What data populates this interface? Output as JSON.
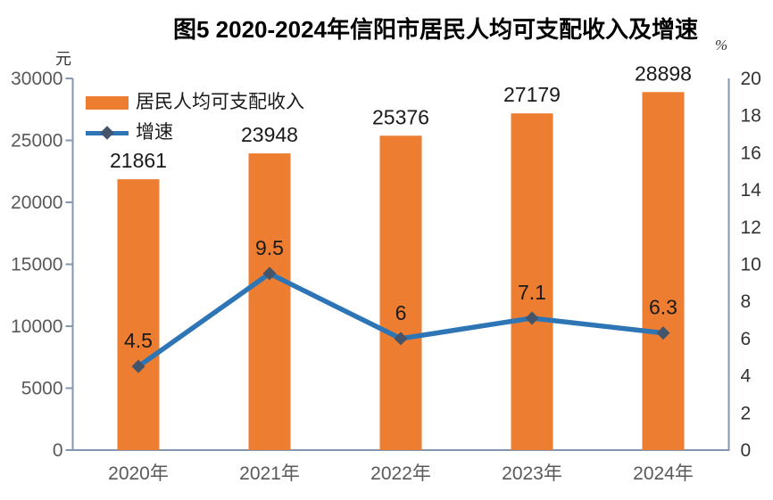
{
  "title": "图5 2020-2024年信阳市居民人均可支配收入及增速",
  "axes": {
    "left_unit": "元",
    "right_unit": "%"
  },
  "legend": {
    "income_label": "居民人均可支配收入",
    "growth_label": "增速"
  },
  "chart_data": {
    "type": "bar",
    "combo": "bar+line",
    "title": "图5 2020-2024年信阳市居民人均可支配收入及增速",
    "categories": [
      "2020年",
      "2021年",
      "2022年",
      "2023年",
      "2024年"
    ],
    "series": [
      {
        "name": "居民人均可支配收入",
        "type": "bar",
        "axis": "left",
        "values": [
          21861,
          23948,
          25376,
          27179,
          28898
        ],
        "color": "#ED7D31"
      },
      {
        "name": "增速",
        "type": "line",
        "axis": "right",
        "values": [
          4.5,
          9.5,
          6,
          7.1,
          6.3
        ],
        "color": "#2E75B6",
        "marker": "diamond",
        "marker_color": "#44546A"
      }
    ],
    "left_axis": {
      "unit": "元",
      "min": 0,
      "max": 30000,
      "step": 5000,
      "tick_labels": [
        "0",
        "5000",
        "10000",
        "15000",
        "20000",
        "25000",
        "30000"
      ]
    },
    "right_axis": {
      "unit": "%",
      "min": 0,
      "max": 20,
      "step": 2,
      "tick_labels": [
        "0",
        "2",
        "4",
        "6",
        "8",
        "10",
        "12",
        "14",
        "16",
        "18",
        "20"
      ]
    },
    "grid": false,
    "legend_position": "inside-top-left",
    "colors": {
      "axis_line": "#8496B0",
      "left_tick_label": "#595959",
      "right_tick_label": "#333333",
      "category_label": "#595959",
      "data_label": "#1a1a1a",
      "background": "#ffffff"
    }
  }
}
